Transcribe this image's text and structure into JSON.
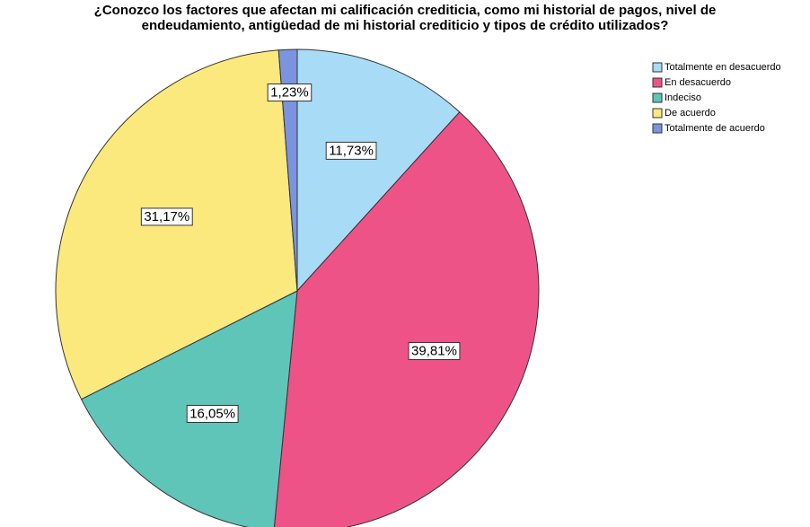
{
  "chart_data": {
    "type": "pie",
    "title": [
      "¿Conozco los factores que afectan mi calificación crediticia, como mi historial de pagos, nivel de",
      "endeudamiento, antigüedad de mi historial crediticio y tipos de crédito utilizados?"
    ],
    "categories": [
      "Totalmente en desacuerdo",
      "En desacuerdo",
      "Indeciso",
      "De acuerdo",
      "Totalmente de acuerdo"
    ],
    "values": [
      11.73,
      39.81,
      16.05,
      31.17,
      1.23
    ],
    "value_labels": [
      "11,73%",
      "39,81%",
      "16,05%",
      "31,17%",
      "1,23%"
    ],
    "colors": [
      "#a8dcf6",
      "#ee5388",
      "#5fc5b9",
      "#fbe97d",
      "#7b94e0"
    ],
    "legend": "top-right"
  }
}
